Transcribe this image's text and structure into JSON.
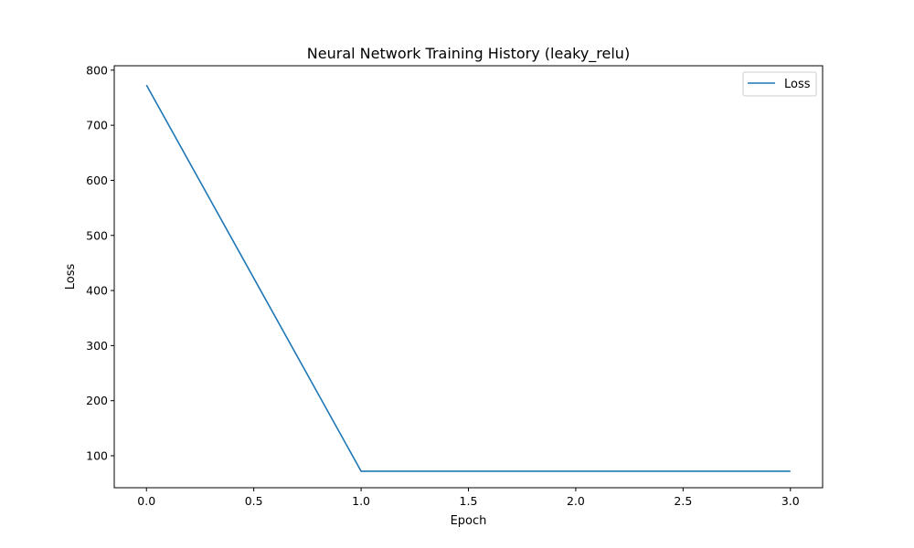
{
  "chart_data": {
    "type": "line",
    "title": "Neural Network Training History (leaky_relu)",
    "xlabel": "Epoch",
    "ylabel": "Loss",
    "xlim": [
      -0.15,
      3.15
    ],
    "ylim": [
      42,
      808
    ],
    "xticks": [
      0.0,
      0.5,
      1.0,
      1.5,
      2.0,
      2.5,
      3.0
    ],
    "xtick_labels": [
      "0.0",
      "0.5",
      "1.0",
      "1.5",
      "2.0",
      "2.5",
      "3.0"
    ],
    "yticks": [
      100,
      200,
      300,
      400,
      500,
      600,
      700,
      800
    ],
    "ytick_labels": [
      "100",
      "200",
      "300",
      "400",
      "500",
      "600",
      "700",
      "800"
    ],
    "grid": false,
    "legend_position": "top-right",
    "series": [
      {
        "name": "Loss",
        "color": "#1f77b4",
        "x": [
          0,
          1,
          2,
          3
        ],
        "y": [
          773,
          72,
          72,
          72
        ]
      }
    ]
  }
}
